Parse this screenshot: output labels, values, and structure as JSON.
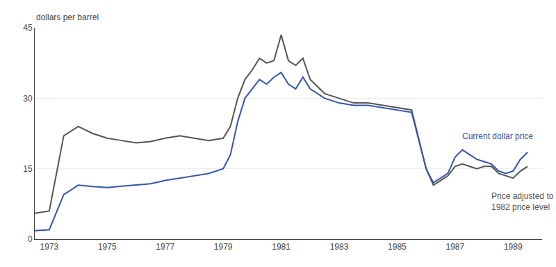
{
  "chart_data": {
    "type": "line",
    "ylabel": "dollars per barrel",
    "x": [
      1972.5,
      1973.0,
      1973.5,
      1974.0,
      1974.5,
      1975.0,
      1975.5,
      1976.0,
      1976.5,
      1977.0,
      1977.5,
      1978.0,
      1978.5,
      1979.0,
      1979.25,
      1979.5,
      1979.75,
      1980.0,
      1980.25,
      1980.5,
      1980.75,
      1981.0,
      1981.25,
      1981.5,
      1981.75,
      1982.0,
      1982.5,
      1983.0,
      1983.5,
      1984.0,
      1984.5,
      1985.0,
      1985.5,
      1986.0,
      1986.25,
      1986.5,
      1986.75,
      1987.0,
      1987.25,
      1987.5,
      1987.75,
      1988.0,
      1988.25,
      1988.5,
      1988.75,
      1989.0,
      1989.25,
      1989.5
    ],
    "series": [
      {
        "name": "Price adjusted to\n1982 price level",
        "color": "#555555",
        "values": [
          5.5,
          6.0,
          22.0,
          24.0,
          22.5,
          21.5,
          21.0,
          20.5,
          20.8,
          21.5,
          22.0,
          21.5,
          21.0,
          21.5,
          24.0,
          30.0,
          34.0,
          36.0,
          38.5,
          37.5,
          38.0,
          43.5,
          38.0,
          37.0,
          38.5,
          34.0,
          31.0,
          30.0,
          29.0,
          29.0,
          28.5,
          28.0,
          27.5,
          15.0,
          11.5,
          12.5,
          13.5,
          15.5,
          16.0,
          15.5,
          15.0,
          15.5,
          15.5,
          14.0,
          13.5,
          13.0,
          14.5,
          15.5
        ]
      },
      {
        "name": "Current dollar price",
        "color": "#3355aa",
        "values": [
          1.8,
          2.0,
          9.5,
          11.5,
          11.2,
          11.0,
          11.3,
          11.5,
          11.8,
          12.5,
          13.0,
          13.5,
          14.0,
          15.0,
          18.0,
          25.0,
          30.0,
          32.0,
          34.0,
          33.0,
          34.5,
          35.5,
          33.0,
          32.0,
          34.5,
          32.0,
          30.0,
          29.0,
          28.5,
          28.5,
          28.0,
          27.5,
          27.0,
          15.0,
          12.0,
          13.0,
          14.0,
          17.5,
          19.0,
          18.0,
          17.0,
          16.5,
          16.0,
          14.5,
          14.0,
          14.5,
          17.0,
          18.5
        ]
      }
    ],
    "xlim": [
      1972.5,
      1990.0
    ],
    "xticks": [
      1973,
      1975,
      1977,
      1979,
      1981,
      1983,
      1985,
      1987,
      1989
    ],
    "ylim": [
      0,
      45
    ],
    "yticks": [
      0,
      15,
      30,
      45
    ],
    "grid": true
  }
}
